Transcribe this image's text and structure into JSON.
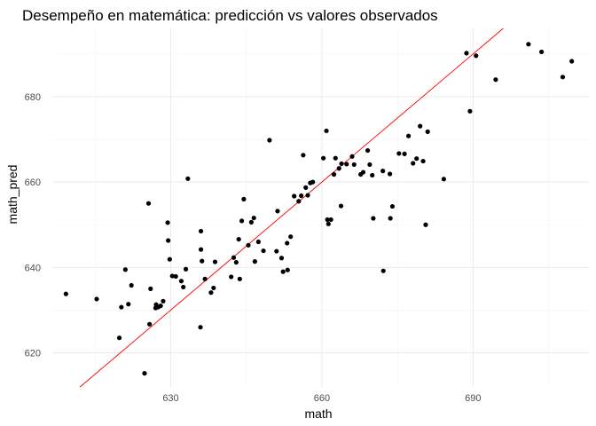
{
  "chart_data": {
    "type": "scatter",
    "title": "Desempeño en matemática: predicción vs valores observados",
    "xlabel": "math",
    "ylabel": "math_pred",
    "xlim": [
      606.5,
      713
    ],
    "ylim": [
      612,
      696
    ],
    "x_ticks": [
      630,
      660,
      690
    ],
    "y_ticks": [
      620,
      640,
      660,
      680
    ],
    "x_tick_labels": [
      "630",
      "660",
      "690"
    ],
    "y_tick_labels": [
      "620",
      "640",
      "660",
      "680"
    ],
    "grid": true,
    "reference_line": {
      "type": "identity",
      "color": "#ff0000"
    },
    "point_color": "#000000",
    "points": [
      [
        609.2,
        633.8
      ],
      [
        615.3,
        632.6
      ],
      [
        619.8,
        623.5
      ],
      [
        620.2,
        630.7
      ],
      [
        621.0,
        639.5
      ],
      [
        621.6,
        631.4
      ],
      [
        622.2,
        635.8
      ],
      [
        624.8,
        615.2
      ],
      [
        625.6,
        655.0
      ],
      [
        625.8,
        626.7
      ],
      [
        626.0,
        635.0
      ],
      [
        627.0,
        630.5
      ],
      [
        627.1,
        631.3
      ],
      [
        627.5,
        630.7
      ],
      [
        628.0,
        631.0
      ],
      [
        628.5,
        632.1
      ],
      [
        629.4,
        650.5
      ],
      [
        629.5,
        646.3
      ],
      [
        629.8,
        641.9
      ],
      [
        630.3,
        638.0
      ],
      [
        631.0,
        637.9
      ],
      [
        632.1,
        636.8
      ],
      [
        632.5,
        635.4
      ],
      [
        633.4,
        660.8
      ],
      [
        633.0,
        639.6
      ],
      [
        635.9,
        626.0
      ],
      [
        636.0,
        644.2
      ],
      [
        636.0,
        648.5
      ],
      [
        636.2,
        641.5
      ],
      [
        636.8,
        637.3
      ],
      [
        638.0,
        634.1
      ],
      [
        638.5,
        635.2
      ],
      [
        638.8,
        641.3
      ],
      [
        642.0,
        637.8
      ],
      [
        642.5,
        642.3
      ],
      [
        643.0,
        641.2
      ],
      [
        643.5,
        646.6
      ],
      [
        643.7,
        637.3
      ],
      [
        644.1,
        650.9
      ],
      [
        644.5,
        656.0
      ],
      [
        645.4,
        645.2
      ],
      [
        646.0,
        650.6
      ],
      [
        646.5,
        651.6
      ],
      [
        646.7,
        641.4
      ],
      [
        647.4,
        646.0
      ],
      [
        648.4,
        643.9
      ],
      [
        649.6,
        669.8
      ],
      [
        651.2,
        653.2
      ],
      [
        651.0,
        643.8
      ],
      [
        652.3,
        639.0
      ],
      [
        652.0,
        642.2
      ],
      [
        653.1,
        645.7
      ],
      [
        653.2,
        639.4
      ],
      [
        653.8,
        647.2
      ],
      [
        654.5,
        656.7
      ],
      [
        655.4,
        655.5
      ],
      [
        655.9,
        656.8
      ],
      [
        656.3,
        666.3
      ],
      [
        656.8,
        658.7
      ],
      [
        657.2,
        656.9
      ],
      [
        657.7,
        659.8
      ],
      [
        658.2,
        660.0
      ],
      [
        660.3,
        665.6
      ],
      [
        660.9,
        672.0
      ],
      [
        661.1,
        651.2
      ],
      [
        661.3,
        650.2
      ],
      [
        661.8,
        651.2
      ],
      [
        662.4,
        661.8
      ],
      [
        662.7,
        665.6
      ],
      [
        663.4,
        663.2
      ],
      [
        663.8,
        654.4
      ],
      [
        663.9,
        664.3
      ],
      [
        664.9,
        664.2
      ],
      [
        666.0,
        666.0
      ],
      [
        666.4,
        664.1
      ],
      [
        667.7,
        661.8
      ],
      [
        668.2,
        662.3
      ],
      [
        669.1,
        667.4
      ],
      [
        669.5,
        664.1
      ],
      [
        670.0,
        661.6
      ],
      [
        670.2,
        651.5
      ],
      [
        672.1,
        662.6
      ],
      [
        672.2,
        639.2
      ],
      [
        673.5,
        661.9
      ],
      [
        673.6,
        651.5
      ],
      [
        674.0,
        654.3
      ],
      [
        675.3,
        666.7
      ],
      [
        676.4,
        666.6
      ],
      [
        677.2,
        670.8
      ],
      [
        678.1,
        664.4
      ],
      [
        678.8,
        665.5
      ],
      [
        679.5,
        673.1
      ],
      [
        680.1,
        664.9
      ],
      [
        680.6,
        650.0
      ],
      [
        681.0,
        671.8
      ],
      [
        684.2,
        660.7
      ],
      [
        688.7,
        690.2
      ],
      [
        689.4,
        676.6
      ],
      [
        690.6,
        689.6
      ],
      [
        694.5,
        684.0
      ],
      [
        701.0,
        692.3
      ],
      [
        703.6,
        690.5
      ],
      [
        707.8,
        684.6
      ],
      [
        709.6,
        688.3
      ]
    ]
  }
}
